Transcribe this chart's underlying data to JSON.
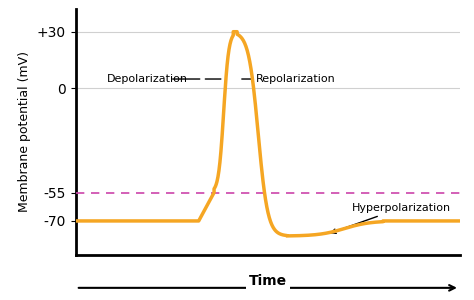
{
  "title": "",
  "ylabel": "Membrane potential (mV)",
  "xlabel": "Time",
  "yticks": [
    -70,
    -55,
    0,
    30
  ],
  "ytick_labels": [
    "-70",
    "-55",
    "0",
    "+30"
  ],
  "ylim": [
    -88,
    42
  ],
  "xlim": [
    0,
    10
  ],
  "threshold_value": -55,
  "resting_value": -70,
  "peak_value": 30,
  "hyperpolar_trough": -78,
  "line_color": "#F5A623",
  "threshold_color": "#CC44AA",
  "background_color": "#ffffff",
  "grid_color": "#d0d0d0"
}
